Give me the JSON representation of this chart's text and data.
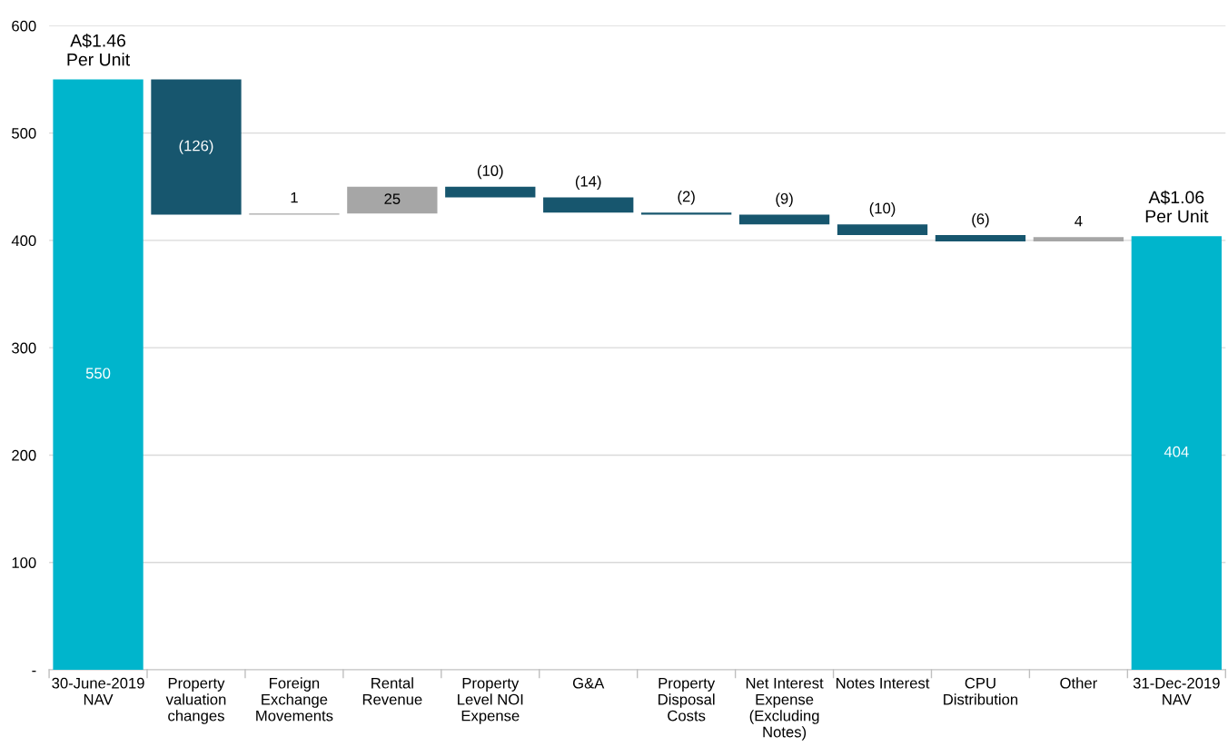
{
  "chart_data": {
    "type": "bar",
    "categories": [
      "30-June-2019\nNAV",
      "Property\nvaluation\nchanges",
      "Foreign\nExchange\nMovements",
      "Rental\nRevenue",
      "Property\nLevel NOI\nExpense",
      "G&A",
      "Property\nDisposal\nCosts",
      "Net Interest\nExpense\n(Excluding\nNotes)",
      "Notes Interest",
      "CPU\nDistribution",
      "Other",
      "31-Dec-2019\nNAV"
    ],
    "values": [
      550,
      -126,
      1,
      25,
      -10,
      -14,
      -2,
      -9,
      -10,
      -6,
      4,
      404
    ],
    "base": [
      0,
      550,
      424,
      425,
      450,
      440,
      426,
      424,
      415,
      405,
      399,
      0
    ],
    "colors": [
      "#00b5cc",
      "#17566e",
      "#a6a6a6",
      "#a6a6a6",
      "#17566e",
      "#17566e",
      "#17566e",
      "#17566e",
      "#17566e",
      "#17566e",
      "#a6a6a6",
      "#00b5cc"
    ],
    "value_labels": [
      "550",
      "(126)",
      "1",
      "25",
      "(10)",
      "(14)",
      "(2)",
      "(9)",
      "(10)",
      "(6)",
      "4",
      "404"
    ],
    "annotations": [
      {
        "text": "A$1.46\nPer Unit",
        "x": "30-June-2019\nNAV",
        "y": 550
      },
      {
        "text": "A$1.06\nPer Unit",
        "x": "31-Dec-2019\nNAV",
        "y": 404
      }
    ],
    "ylim": [
      0,
      600
    ],
    "yticks": [
      {
        "value": 0,
        "label": "-"
      },
      100,
      200,
      300,
      400,
      500,
      600
    ],
    "grid": "y"
  }
}
